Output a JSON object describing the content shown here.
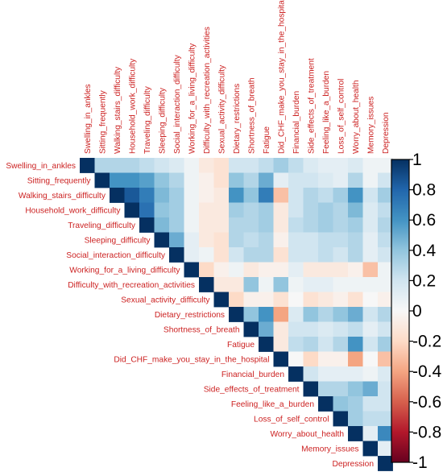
{
  "chart_data": {
    "type": "heatmap",
    "layout": "upper-triangle correlation matrix",
    "labels": [
      "Swelling_in_ankles",
      "Sitting_frequently",
      "Walking_stairs_difficulty",
      "Household_work_difficulty",
      "Traveling_difficulty",
      "Sleeping_difficulty",
      "Social_interaction_difficulty",
      "Working_for_a_living_difficulty",
      "Difficulty_with_recreation_activities",
      "Sexual_activity_difficulty",
      "Dietary_restrictions",
      "Shortness_of_breath",
      "Fatigue",
      "Did_CHF_make_you_stay_in_the_hospital",
      "Financial_burden",
      "Side_effects_of_treatment",
      "Feeling_like_a_burden",
      "Loss_of_self_control",
      "Worry_about_health",
      "Memory_issues",
      "Depression"
    ],
    "matrix": [
      [
        1,
        0.3,
        0.3,
        0.3,
        0.25,
        0.2,
        0.15,
        0.05,
        -0.1,
        -0.15,
        0.2,
        0.2,
        0.25,
        0.35,
        0.25,
        0.15,
        0.1,
        0.1,
        0.15,
        0.05,
        0.05
      ],
      [
        null,
        1,
        0.6,
        0.6,
        0.55,
        0.4,
        0.3,
        0.05,
        -0.05,
        -0.15,
        0.4,
        0.3,
        0.5,
        0.1,
        0.2,
        0.2,
        0.15,
        0.1,
        0.3,
        0.05,
        0.2
      ],
      [
        null,
        null,
        1,
        0.85,
        0.7,
        0.45,
        0.35,
        0.05,
        -0.05,
        -0.1,
        0.6,
        0.4,
        0.7,
        -0.3,
        0.2,
        0.3,
        0.25,
        0.35,
        0.6,
        0.2,
        0.35
      ],
      [
        null,
        null,
        null,
        1,
        0.75,
        0.4,
        0.35,
        0.05,
        -0.1,
        -0.1,
        0.35,
        0.3,
        0.35,
        -0.1,
        0.2,
        0.3,
        0.35,
        0.3,
        0.45,
        0.15,
        0.25
      ],
      [
        null,
        null,
        null,
        null,
        1,
        0.45,
        0.35,
        0.05,
        -0.1,
        -0.1,
        0.3,
        0.3,
        0.35,
        -0.1,
        0.25,
        0.3,
        0.35,
        0.3,
        0.35,
        0.15,
        0.3
      ],
      [
        null,
        null,
        null,
        null,
        null,
        1,
        0.5,
        0.1,
        -0.1,
        -0.15,
        0.3,
        0.25,
        0.3,
        -0.05,
        0.2,
        0.2,
        0.25,
        0.25,
        0.3,
        0.1,
        0.25
      ],
      [
        null,
        null,
        null,
        null,
        null,
        null,
        1,
        0.1,
        0.05,
        -0.15,
        0.2,
        0.3,
        0.3,
        -0.15,
        0.2,
        0.2,
        0.25,
        0.2,
        0.3,
        0.1,
        0.2
      ],
      [
        null,
        null,
        null,
        null,
        null,
        null,
        null,
        1,
        -0.2,
        -0.05,
        0.05,
        -0.1,
        -0.05,
        -0.05,
        0.1,
        -0.1,
        -0.1,
        -0.1,
        -0.05,
        -0.3,
        0.05
      ],
      [
        null,
        null,
        null,
        null,
        null,
        null,
        null,
        null,
        1,
        -0.1,
        -0.1,
        0.4,
        0.05,
        0.4,
        0.05,
        0.1,
        0.1,
        0.05,
        0.05,
        0.05,
        0.05
      ],
      [
        null,
        null,
        null,
        null,
        null,
        null,
        null,
        null,
        null,
        1,
        -0.2,
        -0.05,
        -0.05,
        -0.15,
        0.0,
        -0.15,
        -0.1,
        -0.05,
        -0.15,
        0.0,
        -0.05
      ],
      [
        null,
        null,
        null,
        null,
        null,
        null,
        null,
        null,
        null,
        null,
        1,
        0.4,
        0.6,
        -0.4,
        0.15,
        0.4,
        0.3,
        0.4,
        0.5,
        0.2,
        0.3
      ],
      [
        null,
        null,
        null,
        null,
        null,
        null,
        null,
        null,
        null,
        null,
        null,
        1,
        0.5,
        -0.1,
        0.2,
        0.2,
        0.15,
        0.2,
        0.25,
        0.1,
        0.2
      ],
      [
        null,
        null,
        null,
        null,
        null,
        null,
        null,
        null,
        null,
        null,
        null,
        null,
        1,
        -0.1,
        0.25,
        0.3,
        0.2,
        0.3,
        0.6,
        0.2,
        0.35
      ],
      [
        null,
        null,
        null,
        null,
        null,
        null,
        null,
        null,
        null,
        null,
        null,
        null,
        null,
        1,
        0.0,
        -0.2,
        -0.05,
        -0.05,
        -0.4,
        0.0,
        -0.3
      ],
      [
        null,
        null,
        null,
        null,
        null,
        null,
        null,
        null,
        null,
        null,
        null,
        null,
        null,
        null,
        1,
        0.2,
        0.1,
        0.1,
        0.1,
        0.05,
        0.15
      ],
      [
        null,
        null,
        null,
        null,
        null,
        null,
        null,
        null,
        null,
        null,
        null,
        null,
        null,
        null,
        null,
        1,
        0.3,
        0.3,
        0.4,
        0.5,
        0.2
      ],
      [
        null,
        null,
        null,
        null,
        null,
        null,
        null,
        null,
        null,
        null,
        null,
        null,
        null,
        null,
        null,
        null,
        1,
        0.4,
        0.35,
        0.2,
        0.2
      ],
      [
        null,
        null,
        null,
        null,
        null,
        null,
        null,
        null,
        null,
        null,
        null,
        null,
        null,
        null,
        null,
        null,
        null,
        1,
        0.35,
        0.25,
        0.25
      ],
      [
        null,
        null,
        null,
        null,
        null,
        null,
        null,
        null,
        null,
        null,
        null,
        null,
        null,
        null,
        null,
        null,
        null,
        null,
        1,
        0.1,
        0.65
      ],
      [
        null,
        null,
        null,
        null,
        null,
        null,
        null,
        null,
        null,
        null,
        null,
        null,
        null,
        null,
        null,
        null,
        null,
        null,
        null,
        1,
        0.1
      ],
      [
        null,
        null,
        null,
        null,
        null,
        null,
        null,
        null,
        null,
        null,
        null,
        null,
        null,
        null,
        null,
        null,
        null,
        null,
        null,
        null,
        1
      ]
    ],
    "color_scale": {
      "min": -1,
      "max": 1,
      "ticks": [
        "1",
        "0.8",
        "0.6",
        "0.4",
        "0.2",
        "0",
        "-0.2",
        "-0.4",
        "-0.6",
        "-0.8",
        "-1"
      ],
      "stops": [
        "#67001f",
        "#b2182b",
        "#d6604d",
        "#f4a582",
        "#fddbc7",
        "#f7f7f7",
        "#d1e5f0",
        "#92c5de",
        "#4393c3",
        "#2166ac",
        "#053061"
      ]
    },
    "label_color": "#cc2222",
    "grid": false,
    "legend": "right colorbar"
  }
}
